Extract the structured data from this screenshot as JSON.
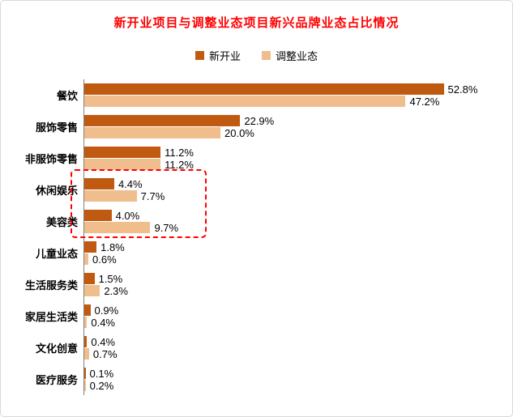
{
  "title": "新开业项目与调整业态项目新兴品牌业态占比情况",
  "colors": {
    "title": "#ff0000",
    "series_new_open": "#c05a11",
    "series_adjusted": "#efbe8c",
    "highlight_border": "#ff0000",
    "axis": "#808080",
    "frame_border": "#d9d9d9"
  },
  "legend": [
    {
      "label": "新开业",
      "color": "#c05a11"
    },
    {
      "label": "调整业态",
      "color": "#efbe8c"
    }
  ],
  "chart_data": {
    "type": "bar",
    "orientation": "horizontal",
    "title": "新开业项目与调整业态项目新兴品牌业态占比情况",
    "categories": [
      "餐饮",
      "服饰零售",
      "非服饰零售",
      "休闲娱乐",
      "美容类",
      "儿童业态",
      "生活服务类",
      "家居生活类",
      "文化创意",
      "医疗服务"
    ],
    "series": [
      {
        "name": "新开业",
        "values": [
          52.8,
          22.9,
          11.2,
          4.4,
          4.0,
          1.8,
          1.5,
          0.9,
          0.4,
          0.1
        ]
      },
      {
        "name": "调整业态",
        "values": [
          47.2,
          20.0,
          11.2,
          7.7,
          9.7,
          0.6,
          2.3,
          0.4,
          0.7,
          0.2
        ]
      }
    ],
    "value_format": "0.0%",
    "xlim": [
      0,
      60
    ],
    "grid": false,
    "legend_position": "top",
    "highlighted_categories": [
      "休闲娱乐",
      "美容类"
    ]
  }
}
